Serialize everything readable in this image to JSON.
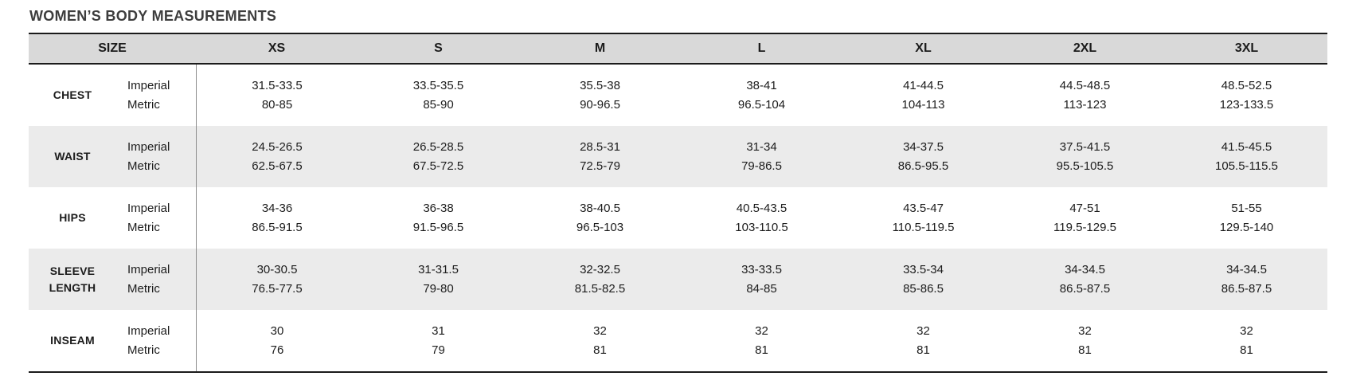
{
  "title": "WOMEN’S BODY MEASUREMENTS",
  "table": {
    "size_header": "SIZE",
    "columns": [
      "XS",
      "S",
      "M",
      "L",
      "XL",
      "2XL",
      "3XL"
    ],
    "unit_labels": {
      "imperial": "Imperial",
      "metric": "Metric"
    },
    "rows": [
      {
        "label": "CHEST",
        "imperial": [
          "31.5-33.5",
          "33.5-35.5",
          "35.5-38",
          "38-41",
          "41-44.5",
          "44.5-48.5",
          "48.5-52.5"
        ],
        "metric": [
          "80-85",
          "85-90",
          "90-96.5",
          "96.5-104",
          "104-113",
          "113-123",
          "123-133.5"
        ]
      },
      {
        "label": "WAIST",
        "imperial": [
          "24.5-26.5",
          "26.5-28.5",
          "28.5-31",
          "31-34",
          "34-37.5",
          "37.5-41.5",
          "41.5-45.5"
        ],
        "metric": [
          "62.5-67.5",
          "67.5-72.5",
          "72.5-79",
          "79-86.5",
          "86.5-95.5",
          "95.5-105.5",
          "105.5-115.5"
        ]
      },
      {
        "label": "HIPS",
        "imperial": [
          "34-36",
          "36-38",
          "38-40.5",
          "40.5-43.5",
          "43.5-47",
          "47-51",
          "51-55"
        ],
        "metric": [
          "86.5-91.5",
          "91.5-96.5",
          "96.5-103",
          "103-110.5",
          "110.5-119.5",
          "119.5-129.5",
          "129.5-140"
        ]
      },
      {
        "label": "SLEEVE LENGTH",
        "imperial": [
          "30-30.5",
          "31-31.5",
          "32-32.5",
          "33-33.5",
          "33.5-34",
          "34-34.5",
          "34-34.5"
        ],
        "metric": [
          "76.5-77.5",
          "79-80",
          "81.5-82.5",
          "84-85",
          "85-86.5",
          "86.5-87.5",
          "86.5-87.5"
        ]
      },
      {
        "label": "INSEAM",
        "imperial": [
          "30",
          "31",
          "32",
          "32",
          "32",
          "32",
          "32"
        ],
        "metric": [
          "76",
          "79",
          "81",
          "81",
          "81",
          "81",
          "81"
        ]
      }
    ]
  },
  "colors": {
    "header_bg": "#d9d9d9",
    "row_alt_bg": "#ebebeb",
    "border_dark": "#1b1b1b",
    "divider": "#8c8c8c",
    "title_text": "#3d3d3d",
    "body_text": "#1c1c1c"
  }
}
